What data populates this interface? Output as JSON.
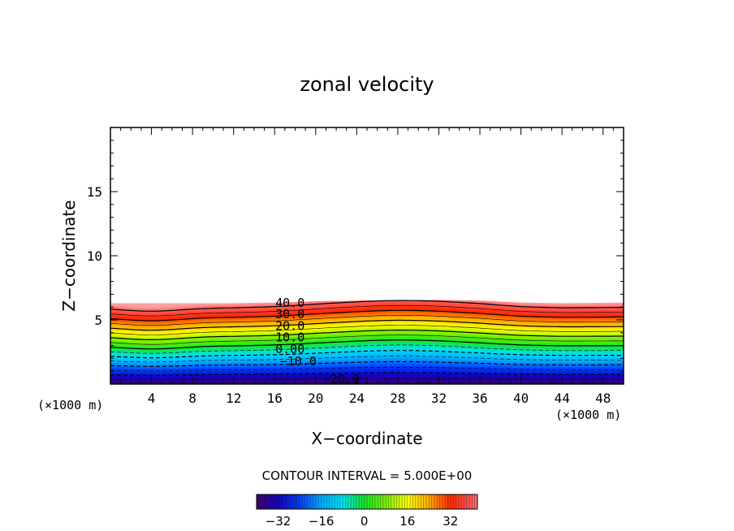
{
  "chart_data": {
    "type": "contour",
    "title": "zonal velocity",
    "xlabel": "X−coordinate",
    "ylabel": "Z−coordinate",
    "x_unit_left": "(×1000 m)",
    "x_unit_right": "(×1000 m)",
    "xlim": [
      0,
      50
    ],
    "ylim": [
      0,
      20
    ],
    "x_ticks": [
      "4",
      "8",
      "12",
      "16",
      "20",
      "24",
      "28",
      "32",
      "36",
      "40",
      "44",
      "48"
    ],
    "x_tick_values": [
      4,
      8,
      12,
      16,
      20,
      24,
      28,
      32,
      36,
      40,
      44,
      48
    ],
    "y_ticks": [
      "5",
      "10",
      "15"
    ],
    "y_tick_values": [
      5,
      10,
      15
    ],
    "contour_labels": [
      {
        "text": "40.0",
        "x": 17.5,
        "z": 6.4
      },
      {
        "text": "30.0",
        "x": 17.5,
        "z": 5.5
      },
      {
        "text": "20.0",
        "x": 17.5,
        "z": 4.6
      },
      {
        "text": "10.0",
        "x": 17.5,
        "z": 3.7
      },
      {
        "text": "0.00",
        "x": 17.5,
        "z": 2.8
      },
      {
        "text": "−10.0",
        "x": 18.3,
        "z": 1.85
      },
      {
        "text": "−20.0",
        "x": 22.5,
        "z": 0.45
      }
    ],
    "field_top_z": [
      6.3,
      6.3,
      6.3,
      6.3,
      6.35,
      6.45,
      6.5,
      6.55,
      6.55,
      6.5,
      6.35,
      6.3,
      6.35
    ],
    "field_top_x": [
      0,
      4,
      8,
      12,
      16,
      20,
      24,
      28,
      32,
      36,
      40,
      44,
      50
    ],
    "velocity_range": [
      -40,
      45
    ],
    "contour_interval_text": "CONTOUR INTERVAL = 5.000E+00",
    "colorbar": {
      "min": -40,
      "max": 42,
      "tick_labels": [
        "−32",
        "−16",
        "0",
        "16",
        "32"
      ],
      "tick_values": [
        -32,
        -16,
        0,
        16,
        32
      ]
    },
    "colors": {
      "cyan": "#00d8ff",
      "green": "#18e000",
      "yellow": "#ffff00",
      "red": "#ff2000"
    }
  }
}
